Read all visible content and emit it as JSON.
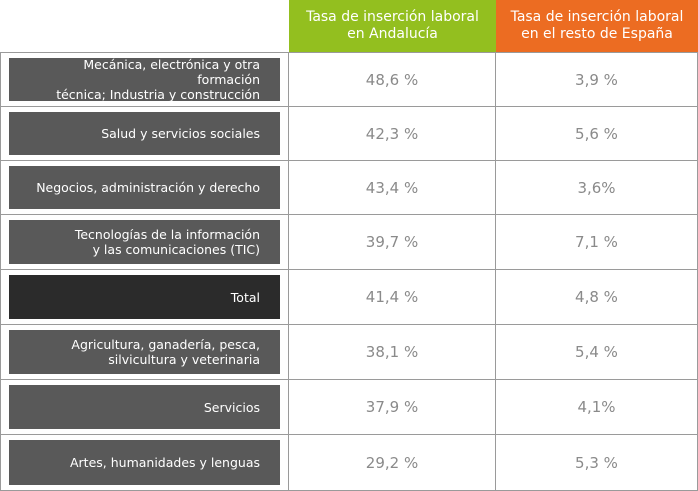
{
  "headers": {
    "andalucia": "Tasa de inserción laboral\nen Andalucía",
    "espana": "Tasa de inserción laboral\nen el resto de España"
  },
  "colors": {
    "andalucia_header": "#93bf1f",
    "espana_header": "#ec6c22",
    "label_bg": "#595959",
    "total_label_bg": "#2b2b2b"
  },
  "rows": [
    {
      "label": "Mecánica, electrónica y otra formación\ntécnica; Industria y construcción",
      "andalucia": "48,6 %",
      "espana": "3,9 %"
    },
    {
      "label": "Salud y servicios sociales",
      "andalucia": "42,3 %",
      "espana": "5,6 %"
    },
    {
      "label": "Negocios, administración y derecho",
      "andalucia": "43,4 %",
      "espana": "3,6%"
    },
    {
      "label": "Tecnologías de la información\ny las comunicaciones (TIC)",
      "andalucia": "39,7 %",
      "espana": "7,1 %"
    },
    {
      "label": "Total",
      "andalucia": "41,4 %",
      "espana": "4,8 %"
    },
    {
      "label": "Agricultura, ganadería, pesca,\nsilvicultura y veterinaria",
      "andalucia": "38,1 %",
      "espana": "5,4 %"
    },
    {
      "label": "Servicios",
      "andalucia": "37,9 %",
      "espana": "4,1%"
    },
    {
      "label": "Artes, humanidades y lenguas",
      "andalucia": "29,2 %",
      "espana": "5,3 %"
    }
  ]
}
